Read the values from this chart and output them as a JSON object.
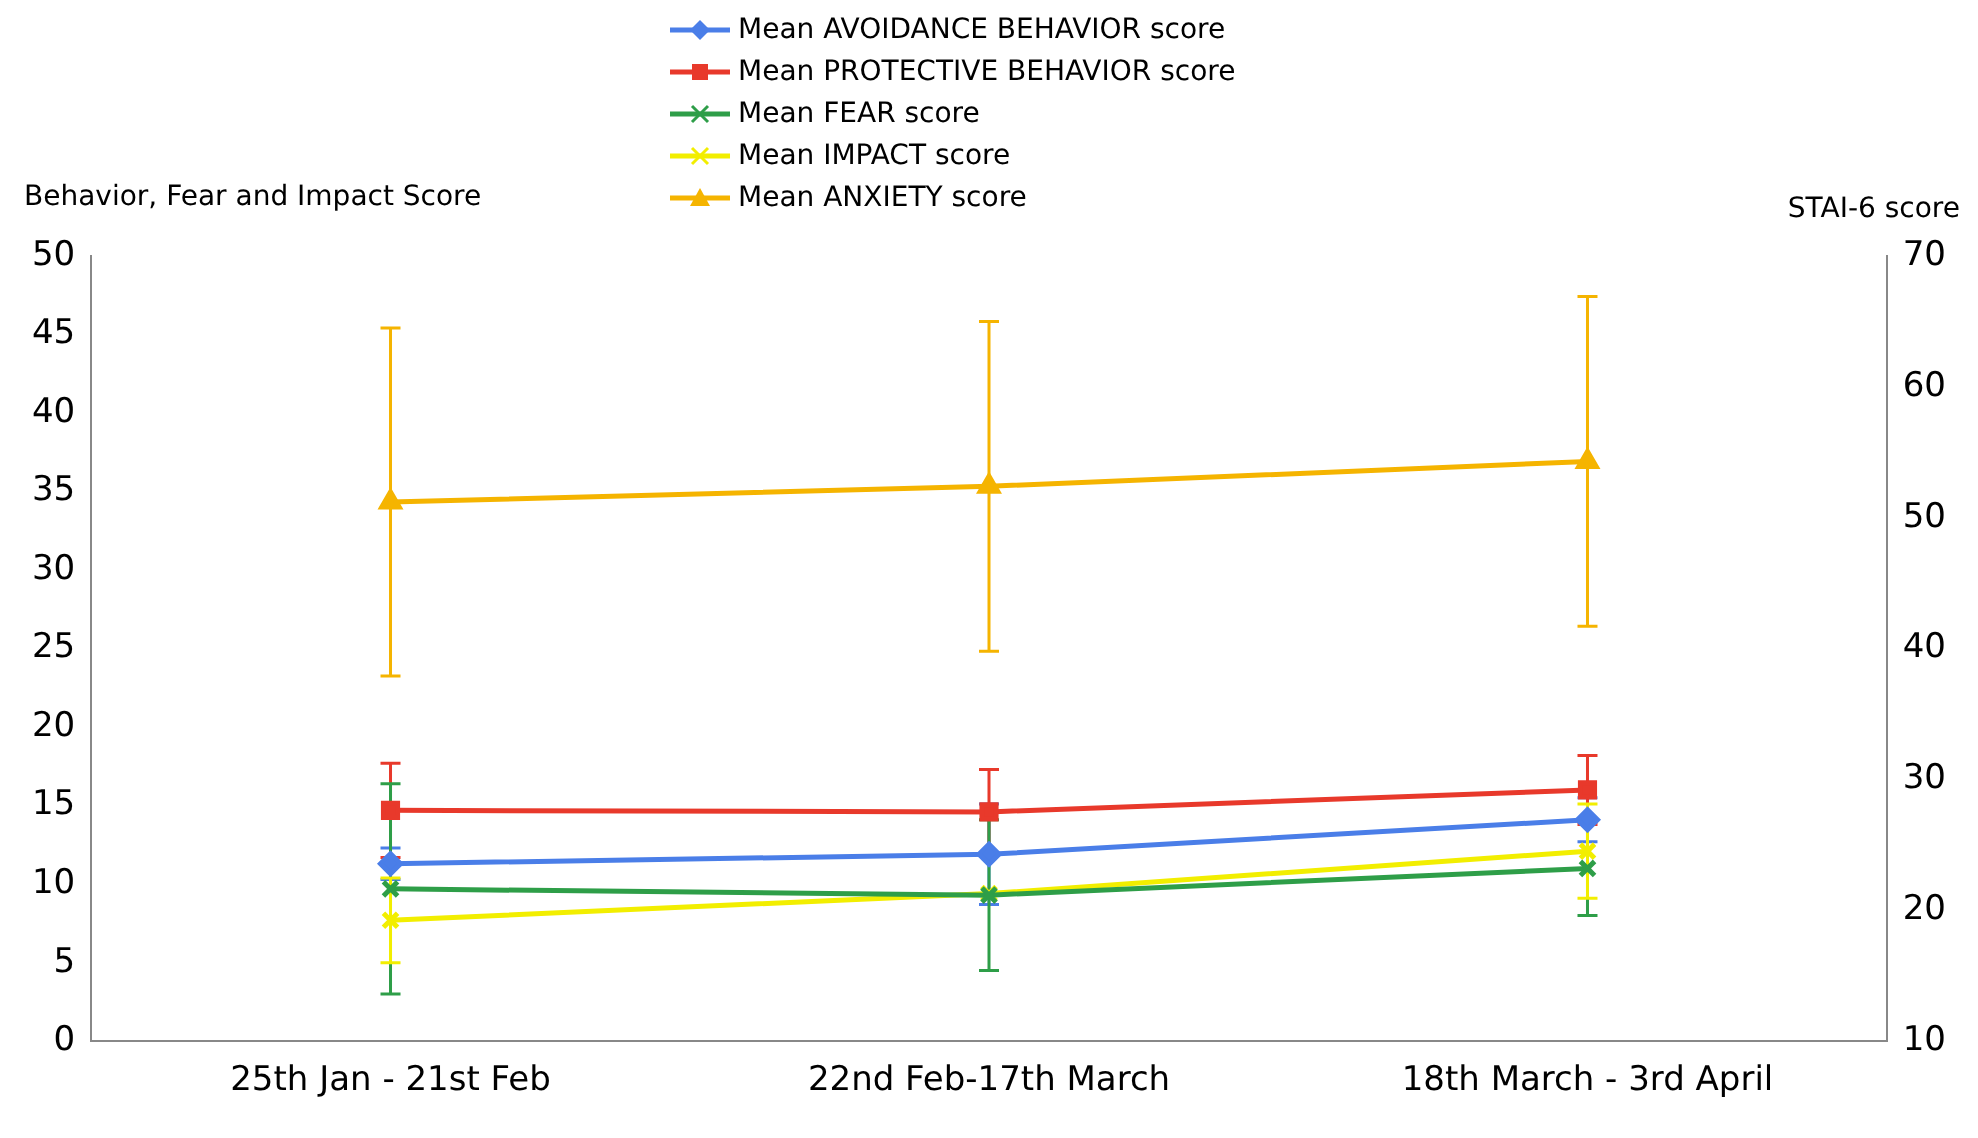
{
  "chart_data": {
    "type": "line",
    "ylabel": "Behavior, Fear and Impact Score",
    "y2label": "STAI-6 score",
    "categories": [
      "25th Jan - 21st Feb",
      "22nd Feb-17th March",
      "18th March - 3rd April"
    ],
    "series": [
      {
        "name": "Mean AVOIDANCE BEHAVIOR score",
        "color": "#4a7ee8",
        "marker": "diamond",
        "values": [
          11.3,
          11.9,
          14.1
        ],
        "errors": [
          1,
          3.2,
          1.4
        ]
      },
      {
        "name": "Mean PROTECTIVE BEHAVIOR score",
        "color": "#e8392b",
        "marker": "square",
        "values": [
          14.7,
          14.6,
          16.0
        ],
        "errors": [
          3,
          2.7,
          2.2
        ]
      },
      {
        "name": "Mean FEAR score",
        "color": "#2e9e48",
        "marker": "cross",
        "values": [
          9.7,
          9.3,
          11.0
        ],
        "errors": [
          6.7,
          4.8,
          3
        ]
      },
      {
        "name": "Mean IMPACT score",
        "color": "#f2ee00",
        "marker": "cross",
        "values": [
          7.7,
          9.4,
          12.1
        ],
        "errors": [
          2.7,
          null,
          3
        ]
      },
      {
        "name": "Mean ANXIETY score",
        "color": "#f5b400",
        "marker": "triangle",
        "axis": "y2",
        "values": [
          51.2,
          52.4,
          54.3
        ],
        "errors": [
          13.3,
          12.6,
          12.6
        ]
      }
    ],
    "ylim": [
      0,
      50
    ],
    "yticks": [
      0,
      5,
      10,
      15,
      20,
      25,
      30,
      35,
      40,
      45,
      50
    ],
    "y2lim": [
      10,
      70
    ],
    "y2ticks": [
      10,
      20,
      30,
      40,
      50,
      60,
      70
    ],
    "grid": false,
    "legend": "top"
  }
}
